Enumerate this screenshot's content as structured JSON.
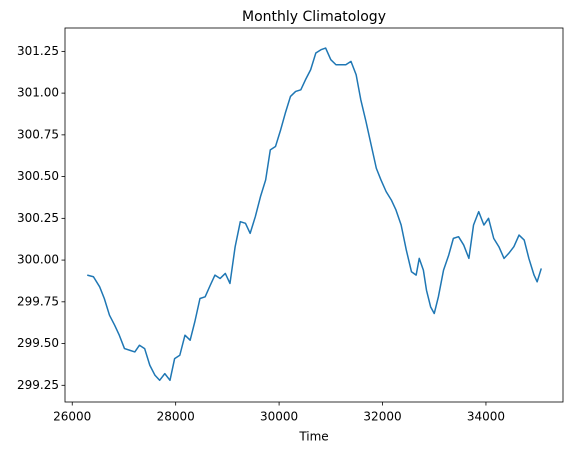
{
  "chart_data": {
    "type": "line",
    "title": "Monthly Climatology",
    "x_label": "Time",
    "x": [
      26290,
      26410,
      26530,
      26620,
      26720,
      26820,
      26910,
      27010,
      27110,
      27210,
      27300,
      27400,
      27500,
      27600,
      27690,
      27790,
      27890,
      27980,
      28080,
      28180,
      28280,
      28370,
      28470,
      28570,
      28670,
      28760,
      28860,
      28960,
      29050,
      29150,
      29250,
      29350,
      29440,
      29540,
      29640,
      29740,
      29830,
      29930,
      30030,
      30120,
      30220,
      30320,
      30420,
      30510,
      30610,
      30710,
      30810,
      30900,
      31000,
      31100,
      31190,
      31290,
      31390,
      31490,
      31580,
      31680,
      31780,
      31880,
      31970,
      32070,
      32170,
      32260,
      32360,
      32460,
      32560,
      32650,
      32710,
      32790,
      32850,
      32930,
      33000,
      33080,
      33180,
      33280,
      33370,
      33470,
      33570,
      33670,
      33760,
      33860,
      33960,
      34050,
      34150,
      34250,
      34350,
      34440,
      34540,
      34640,
      34740,
      34830,
      34930,
      34990,
      35070
    ],
    "series": [
      {
        "color": "#1f77b4",
        "values": [
          299.91,
          299.9,
          299.84,
          299.77,
          299.67,
          299.61,
          299.55,
          299.47,
          299.46,
          299.45,
          299.49,
          299.47,
          299.37,
          299.31,
          299.28,
          299.32,
          299.28,
          299.41,
          299.43,
          299.55,
          299.52,
          299.63,
          299.77,
          299.78,
          299.85,
          299.91,
          299.89,
          299.92,
          299.86,
          300.08,
          300.23,
          300.22,
          300.16,
          300.26,
          300.38,
          300.48,
          300.66,
          300.68,
          300.78,
          300.88,
          300.98,
          301.01,
          301.02,
          301.08,
          301.14,
          301.24,
          301.26,
          301.27,
          301.2,
          301.17,
          301.17,
          301.17,
          301.19,
          301.11,
          300.96,
          300.83,
          300.69,
          300.55,
          300.48,
          300.41,
          300.36,
          300.3,
          300.21,
          300.06,
          299.93,
          299.91,
          300.01,
          299.94,
          299.82,
          299.72,
          299.68,
          299.78,
          299.94,
          300.03,
          300.13,
          300.14,
          300.09,
          300.01,
          300.21,
          300.29,
          300.21,
          300.25,
          300.13,
          300.08,
          300.01,
          300.04,
          300.08,
          300.15,
          300.12,
          300.01,
          299.91,
          299.87,
          299.95
        ]
      }
    ],
    "xlim": [
      25860,
      35490
    ],
    "xticks": [
      26000,
      28000,
      30000,
      32000,
      34000
    ],
    "ylim": [
      299.15,
      301.39
    ],
    "yticks": [
      299.25,
      {
        "value": 299.5,
        "label": "299.50"
      },
      299.75,
      {
        "value": 300,
        "label": "300.00"
      },
      300.25,
      {
        "value": 300.5,
        "label": "300.50"
      },
      300.75,
      {
        "value": 301,
        "label": "301.00"
      },
      301.25
    ]
  }
}
